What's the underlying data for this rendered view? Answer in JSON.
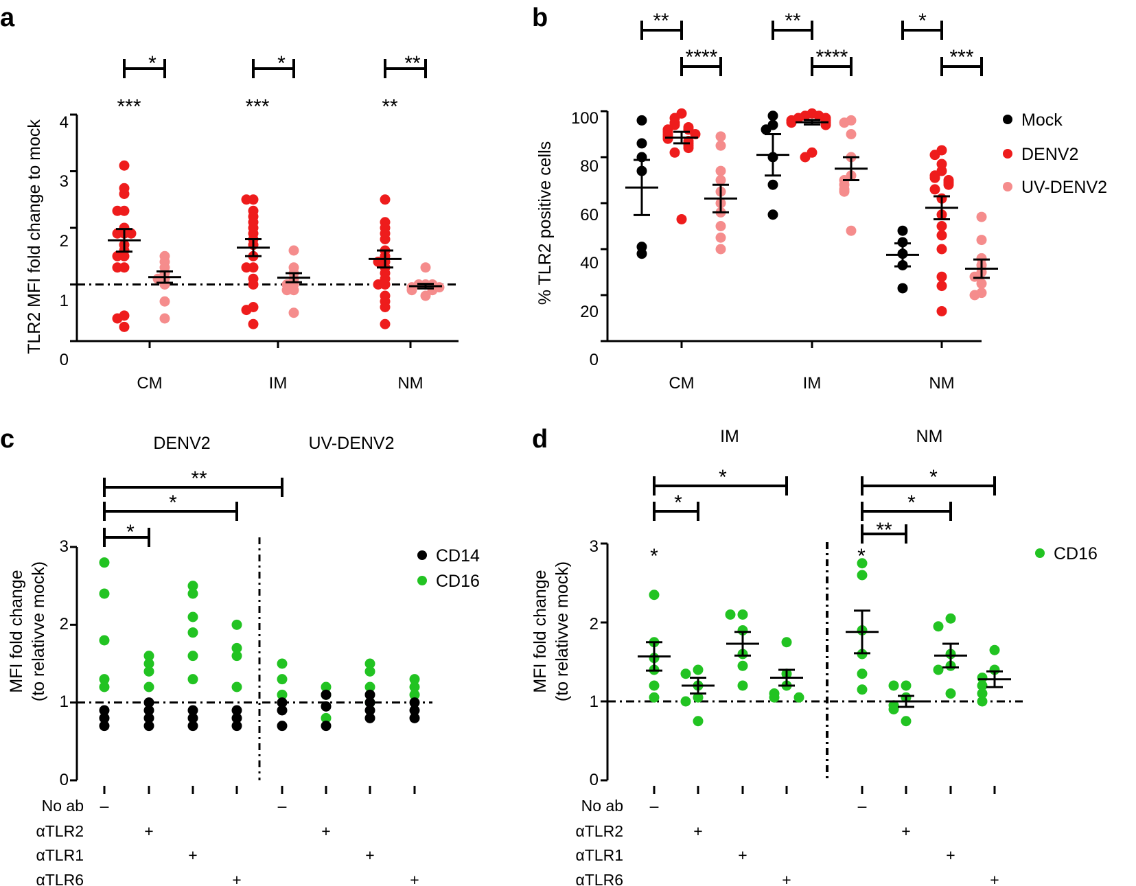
{
  "figure": {
    "panels": [
      {
        "id": "a",
        "label": "a"
      },
      {
        "id": "b",
        "label": "b"
      },
      {
        "id": "c",
        "label": "c"
      },
      {
        "id": "d",
        "label": "d"
      }
    ]
  },
  "colors": {
    "mock": "#000000",
    "denv2": "#ee1c1c",
    "uv_denv2": "#f58c8c",
    "cd14": "#000000",
    "cd16": "#22c322"
  },
  "chart_data": [
    {
      "panel": "a",
      "type": "scatter",
      "ylabel": "TLR2 MFI fold change to mock",
      "ylim": [
        0,
        4
      ],
      "yticks": [
        "0",
        "1",
        "2",
        "3",
        "4"
      ],
      "categories": [
        "CM",
        "IM",
        "NM"
      ],
      "reference_line": 1,
      "series": [
        {
          "name": "DENV2",
          "color": "#ee1c1c",
          "groups": [
            {
              "points": [
                3.1,
                2.7,
                2.6,
                2.3,
                2.3,
                2.0,
                1.9,
                1.9,
                1.9,
                1.7,
                1.6,
                1.5,
                1.5,
                1.3,
                1.3,
                0.45,
                0.4,
                0.25
              ],
              "mean": 1.78,
              "sem": 0.2
            },
            {
              "points": [
                2.5,
                2.5,
                2.3,
                2.2,
                2.1,
                2.0,
                1.9,
                1.8,
                1.7,
                1.5,
                1.3,
                1.3,
                1.1,
                1.0,
                0.6,
                0.55,
                0.3
              ],
              "mean": 1.65,
              "sem": 0.15
            },
            {
              "points": [
                2.5,
                2.1,
                2.0,
                1.9,
                1.8,
                1.6,
                1.5,
                1.4,
                1.4,
                1.3,
                1.2,
                1.1,
                1.0,
                1.0,
                0.8,
                0.7,
                0.6,
                0.3
              ],
              "mean": 1.45,
              "sem": 0.15
            }
          ]
        },
        {
          "name": "UV-DENV2",
          "color": "#f58c8c",
          "groups": [
            {
              "points": [
                1.5,
                1.4,
                1.3,
                1.2,
                1.1,
                1.1,
                1.0,
                0.7,
                0.4
              ],
              "mean": 1.13,
              "sem": 0.1
            },
            {
              "points": [
                1.6,
                1.3,
                1.2,
                1.1,
                1.0,
                1.0,
                0.9,
                0.9,
                0.5
              ],
              "mean": 1.12,
              "sem": 0.08
            },
            {
              "points": [
                1.3,
                1.0,
                1.0,
                1.0,
                0.95,
                0.95,
                0.9,
                0.9,
                0.8
              ],
              "mean": 0.97,
              "sem": 0.04
            }
          ]
        }
      ],
      "annotations": {
        "brackets": [
          "*",
          "*",
          "**"
        ],
        "over_denv2": [
          "***",
          "***",
          "**"
        ]
      }
    },
    {
      "panel": "b",
      "type": "scatter",
      "ylabel": "% TLR2 positive cells",
      "ylim": [
        0,
        100
      ],
      "yticks": [
        "0",
        "20",
        "40",
        "60",
        "80",
        "100"
      ],
      "categories": [
        "CM",
        "IM",
        "NM"
      ],
      "legend": [
        "Mock",
        "DENV2",
        "UV-DENV2"
      ],
      "series": [
        {
          "name": "Mock",
          "color": "#000000",
          "groups": [
            {
              "points": [
                96,
                86,
                80,
                74,
                41,
                38
              ],
              "mean": 66.8,
              "sem": 12
            },
            {
              "points": [
                98,
                94,
                92,
                80,
                68,
                55
              ],
              "mean": 81,
              "sem": 9
            },
            {
              "points": [
                48,
                43,
                38,
                33,
                23
              ],
              "mean": 37.5,
              "sem": 5
            }
          ]
        },
        {
          "name": "DENV2",
          "color": "#ee1c1c",
          "groups": [
            {
              "points": [
                99,
                97,
                95,
                94,
                93,
                92,
                92,
                91,
                90,
                90,
                89,
                88,
                87,
                86,
                85,
                84,
                82,
                53
              ],
              "mean": 88.5,
              "sem": 2.5
            },
            {
              "points": [
                99,
                98,
                98,
                97,
                97,
                96,
                96,
                95,
                95,
                94,
                82,
                80
              ],
              "mean": 95.2,
              "sem": 1
            },
            {
              "points": [
                83,
                81,
                77,
                74,
                72,
                71,
                70,
                69,
                68,
                66,
                62,
                55,
                50,
                46,
                40,
                28,
                24,
                13
              ],
              "mean": 58,
              "sem": 5
            }
          ]
        },
        {
          "name": "UV-DENV2",
          "color": "#f58c8c",
          "groups": [
            {
              "points": [
                89,
                85,
                74,
                70,
                65,
                60,
                56,
                50,
                45,
                40
              ],
              "mean": 62,
              "sem": 6
            },
            {
              "points": [
                96,
                95,
                90,
                80,
                72,
                70,
                68,
                66,
                65,
                48
              ],
              "mean": 75,
              "sem": 5
            },
            {
              "points": [
                54,
                44,
                36,
                33,
                30,
                28,
                25,
                21,
                20
              ],
              "mean": 31.5,
              "sem": 4
            }
          ]
        }
      ],
      "annotations": {
        "brackets_top": [
          "**",
          "**",
          "*"
        ],
        "brackets_second": [
          "****",
          "****",
          "***"
        ]
      }
    },
    {
      "panel": "c",
      "type": "scatter",
      "ylabel_line1": "MFI fold change",
      "ylabel_line2": "(to relativve mock)",
      "ylim": [
        0,
        3
      ],
      "yticks": [
        "0",
        "1",
        "2",
        "3"
      ],
      "headers": [
        "DENV2",
        "UV-DENV2"
      ],
      "legend": [
        "CD14",
        "CD16"
      ],
      "reference_line": 1,
      "row_labels": [
        "No ab",
        "αTLR2",
        "αTLR1",
        "αTLR6"
      ],
      "row_marks": [
        "–",
        "+",
        "+",
        "+",
        "–",
        "+",
        "+",
        "+"
      ],
      "series": [
        {
          "name": "CD16",
          "color": "#22c322",
          "groups": [
            [
              2.8,
              2.4,
              1.8,
              1.3,
              1.2
            ],
            [
              1.6,
              1.5,
              1.4,
              1.2
            ],
            [
              2.5,
              2.4,
              2.1,
              1.9,
              1.6,
              1.3
            ],
            [
              2.0,
              1.7,
              1.6,
              1.2
            ],
            [
              1.5,
              1.3,
              1.1
            ],
            [
              1.2,
              1.1,
              0.8
            ],
            [
              1.5,
              1.4,
              1.2,
              1.0
            ],
            [
              1.3,
              1.2,
              1.1
            ]
          ]
        },
        {
          "name": "CD14",
          "color": "#000000",
          "groups": [
            [
              0.9,
              0.8,
              0.7
            ],
            [
              1.0,
              0.9,
              0.8,
              0.7
            ],
            [
              0.9,
              0.8,
              0.7
            ],
            [
              0.9,
              0.8,
              0.7
            ],
            [
              1.0,
              0.9,
              0.7
            ],
            [
              1.1,
              0.95,
              0.7
            ],
            [
              1.1,
              1.0,
              0.9,
              0.8
            ],
            [
              1.0,
              0.9,
              0.8
            ]
          ]
        }
      ],
      "annotations": {
        "brackets": [
          "**",
          "*",
          "*"
        ]
      }
    },
    {
      "panel": "d",
      "type": "scatter",
      "ylabel_line1": "MFI fold change",
      "ylabel_line2": "(to relativve mock)",
      "ylim": [
        0,
        3
      ],
      "yticks": [
        "0",
        "1",
        "2",
        "3"
      ],
      "headers": [
        "IM",
        "NM"
      ],
      "legend": [
        "CD16"
      ],
      "reference_line": 1,
      "row_labels": [
        "No ab",
        "αTLR2",
        "αTLR1",
        "αTLR6"
      ],
      "row_marks": [
        "–",
        "+",
        "+",
        "+",
        "–",
        "+",
        "+",
        "+"
      ],
      "series": [
        {
          "name": "CD16",
          "color": "#22c322",
          "groups": [
            {
              "points": [
                2.35,
                1.75,
                1.55,
                1.4,
                1.2,
                1.05
              ],
              "mean": 1.57,
              "sem": 0.18
            },
            {
              "points": [
                1.4,
                1.35,
                1.2,
                1.05,
                1.0,
                0.75
              ],
              "mean": 1.2,
              "sem": 0.1
            },
            {
              "points": [
                2.1,
                2.1,
                1.9,
                1.6,
                1.45,
                1.2
              ],
              "mean": 1.73,
              "sem": 0.15
            },
            {
              "points": [
                1.75,
                1.35,
                1.2,
                1.1,
                1.05,
                1.05
              ],
              "mean": 1.3,
              "sem": 0.1
            },
            {
              "points": [
                2.75,
                2.6,
                1.9,
                1.6,
                1.35,
                1.15
              ],
              "mean": 1.88,
              "sem": 0.27
            },
            {
              "points": [
                1.2,
                1.2,
                1.05,
                0.95,
                0.9,
                0.75
              ],
              "mean": 1.0,
              "sem": 0.07
            },
            {
              "points": [
                2.05,
                1.95,
                1.6,
                1.45,
                1.4,
                1.1
              ],
              "mean": 1.58,
              "sem": 0.15
            },
            {
              "points": [
                1.65,
                1.4,
                1.3,
                1.2,
                1.1,
                1.0
              ],
              "mean": 1.28,
              "sem": 0.1
            }
          ]
        }
      ],
      "annotations": {
        "brackets": [
          "*",
          "*",
          "*",
          "*",
          "**"
        ],
        "over_points": [
          "*",
          "*"
        ]
      }
    }
  ]
}
